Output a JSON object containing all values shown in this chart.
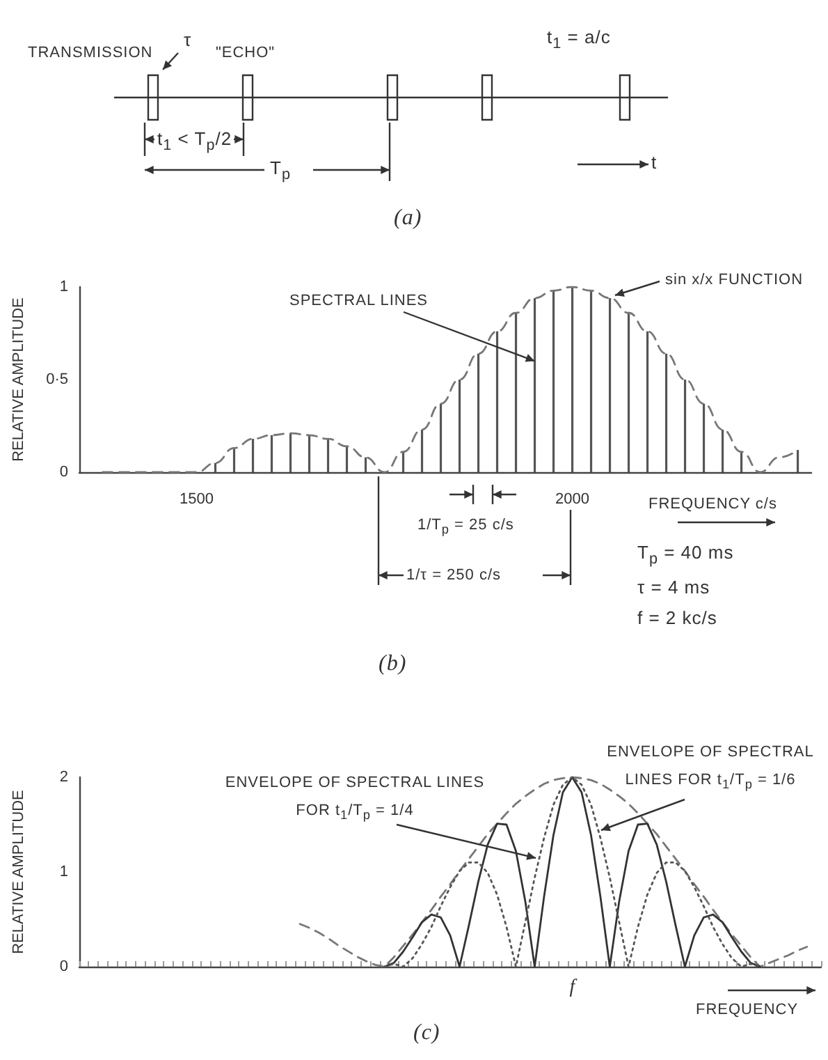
{
  "chart_data": [
    {
      "type": "other",
      "annotations": [
        "TRANSMISSION",
        "τ",
        "\"ECHO\"",
        "t$_{1}$ = a/c",
        "t$_{1}$ < T$_{p}$/2",
        "T$_{p}$",
        "t",
        "(a)"
      ]
    },
    {
      "type": "bar",
      "xlabel": "FREQUENCY c/s",
      "ylabel": "RELATIVE AMPLITUDE",
      "xlim": [
        1344,
        2318
      ],
      "xticks": [
        1500,
        2000
      ],
      "ylim": [
        0,
        1
      ],
      "yticks": [
        0,
        {
          "value": 0.5,
          "label": "0·5"
        },
        1
      ],
      "grid": false,
      "marker": "none",
      "series": [
        {
          "type": "bar",
          "color": "#555555",
          "x": [
            1525,
            1550,
            1575,
            1600,
            1625,
            1650,
            1675,
            1700,
            1725,
            1775,
            1800,
            1825,
            1850,
            1875,
            1900,
            1925,
            1950,
            1975,
            2000,
            2025,
            2050,
            2075,
            2100,
            2125,
            2150,
            2175,
            2200,
            2225,
            2300
          ],
          "values": [
            0.05,
            0.13,
            0.18,
            0.2,
            0.21,
            0.2,
            0.18,
            0.14,
            0.08,
            0.11,
            0.23,
            0.37,
            0.5,
            0.64,
            0.76,
            0.86,
            0.94,
            0.98,
            1,
            0.98,
            0.94,
            0.86,
            0.76,
            0.64,
            0.5,
            0.37,
            0.23,
            0.11,
            0.12
          ]
        },
        {
          "type": "line",
          "color": "#777777",
          "line_style": "dashed",
          "x": [
            1375,
            1400,
            1425,
            1450,
            1475,
            1500,
            1525,
            1550,
            1575,
            1600,
            1625,
            1650,
            1675,
            1700,
            1725,
            1750,
            1775,
            1800,
            1825,
            1850,
            1875,
            1900,
            1925,
            1950,
            1975,
            2000,
            2025,
            2050,
            2075,
            2100,
            2125,
            2150,
            2175,
            2200,
            2225,
            2250,
            2275,
            2300
          ],
          "values": [
            0,
            0,
            0,
            0,
            0,
            0,
            0.05,
            0.13,
            0.18,
            0.2,
            0.21,
            0.2,
            0.18,
            0.14,
            0.08,
            0,
            0.11,
            0.23,
            0.37,
            0.5,
            0.64,
            0.76,
            0.86,
            0.94,
            0.98,
            1,
            0.98,
            0.94,
            0.86,
            0.76,
            0.64,
            0.5,
            0.37,
            0.23,
            0.11,
            0,
            0.08,
            0.12
          ]
        }
      ],
      "annotations": [
        {
          "text": "SPECTRAL LINES",
          "x": 1950,
          "y": 0.6
        },
        "sin x/x FUNCTION",
        "1/T$_{p}$ = 25 c/s",
        "1/τ = 250 c/s",
        "T$_{p}$ = 40 ms",
        "τ = 4 ms",
        "f = 2 kc/s",
        "(b)"
      ]
    },
    {
      "type": "line",
      "xlabel": "FREQUENCY",
      "ylabel": "RELATIVE AMPLITUDE",
      "ylim": [
        0,
        2
      ],
      "yticks": [
        0,
        1,
        2
      ],
      "grid": false,
      "marker": "none",
      "categories": [
        null,
        null,
        null,
        null,
        null,
        null,
        null,
        null,
        null,
        null,
        null,
        null,
        null,
        null,
        null,
        null,
        null,
        null,
        null,
        null,
        null,
        null,
        null,
        null,
        null,
        null,
        null,
        null,
        null,
        null,
        null,
        null,
        null,
        null,
        null,
        null,
        null,
        null,
        null,
        null,
        null,
        null,
        null,
        null,
        null,
        null,
        null,
        null,
        null,
        null,
        null,
        null,
        "f",
        null,
        null,
        null,
        null,
        null,
        null,
        null,
        null,
        null,
        null,
        null,
        null,
        null,
        null,
        null,
        null,
        null,
        null,
        null,
        null,
        null,
        null,
        null,
        null,
        null,
        null
      ],
      "series": [
        {
          "color": "#777777",
          "line_style": "dashed",
          "values": [
            null,
            null,
            null,
            null,
            null,
            null,
            null,
            null,
            null,
            null,
            null,
            null,
            null,
            null,
            null,
            null,
            null,
            null,
            null,
            null,
            null,
            null,
            null,
            0.45,
            0.41,
            0.36,
            0.3,
            0.23,
            0.17,
            0.11,
            0.06,
            0.02,
            0,
            0.1,
            0.22,
            0.34,
            0.47,
            0.6,
            0.74,
            0.87,
            1.01,
            1.14,
            1.27,
            1.4,
            1.51,
            1.62,
            1.72,
            1.8,
            1.87,
            1.93,
            1.97,
            1.99,
            2,
            1.99,
            1.97,
            1.93,
            1.87,
            1.8,
            1.72,
            1.62,
            1.51,
            1.4,
            1.27,
            1.14,
            1.01,
            0.87,
            0.74,
            0.6,
            0.47,
            0.34,
            0.22,
            0.1,
            0,
            0.04,
            0.08,
            0.12,
            0.17,
            0.21,
            null
          ]
        },
        {
          "color": "#333333",
          "line_style": "solid",
          "values": [
            null,
            null,
            null,
            null,
            null,
            null,
            null,
            null,
            null,
            null,
            null,
            null,
            null,
            null,
            null,
            null,
            null,
            null,
            null,
            null,
            null,
            null,
            null,
            null,
            null,
            null,
            null,
            null,
            null,
            null,
            null,
            null,
            0,
            0.04,
            0.16,
            0.31,
            0.47,
            0.55,
            0.52,
            0.33,
            0,
            0.44,
            0.9,
            1.29,
            1.51,
            1.5,
            1.22,
            0.69,
            0,
            0.74,
            1.39,
            1.84,
            2,
            1.84,
            1.39,
            0.74,
            0,
            0.69,
            1.22,
            1.5,
            1.51,
            1.29,
            0.9,
            0.44,
            0,
            0.33,
            0.52,
            0.55,
            0.47,
            0.31,
            0.16,
            0.04,
            0,
            null,
            null,
            null,
            null,
            null,
            null
          ]
        },
        {
          "color": "#555555",
          "line_style": "dotted",
          "values": [
            null,
            null,
            null,
            null,
            null,
            null,
            null,
            null,
            null,
            null,
            null,
            null,
            null,
            null,
            null,
            null,
            null,
            null,
            null,
            null,
            null,
            null,
            null,
            null,
            null,
            null,
            null,
            null,
            null,
            null,
            null,
            null,
            0,
            0.03,
            0,
            0.09,
            0.24,
            0.42,
            0.64,
            0.84,
            1.01,
            1.1,
            1.1,
            0.99,
            0.76,
            0.42,
            0,
            0.47,
            0.94,
            1.36,
            1.71,
            1.92,
            2,
            1.92,
            1.71,
            1.36,
            0.94,
            0.47,
            0,
            0.42,
            0.76,
            0.99,
            1.1,
            1.1,
            1.01,
            0.84,
            0.64,
            0.42,
            0.24,
            0.09,
            0,
            0.03,
            0,
            null,
            null,
            null,
            null,
            null,
            null
          ]
        }
      ],
      "annotations": [
        "ENVELOPE OF SPECTRAL LINES FOR t$_{1}$/T$_{p}$ = 1/4",
        "ENVELOPE OF SPECTRAL LINES FOR t$_{1}$/T$_{p}$ = 1/6",
        "(c)"
      ]
    }
  ]
}
